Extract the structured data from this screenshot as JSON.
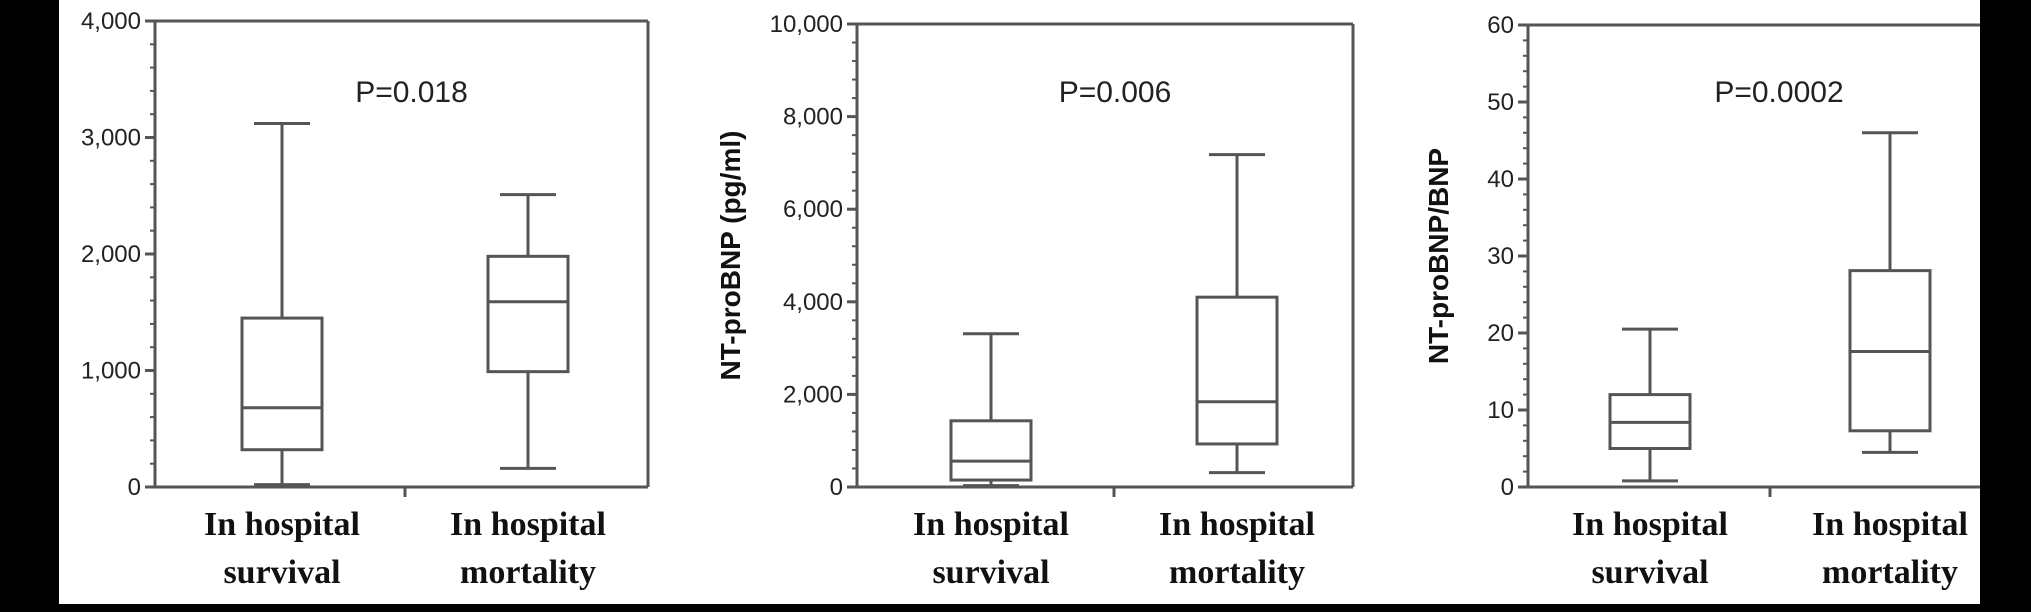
{
  "chart_data": [
    {
      "type": "box",
      "ylabel": "",
      "ylim": [
        0,
        4000
      ],
      "yticks": [
        "0",
        "1,000",
        "2,000",
        "3,000",
        "4,000"
      ],
      "annotation": "P=0.018",
      "categories": [
        [
          "In hospital",
          "survival"
        ],
        [
          "In hospital",
          "mortality"
        ]
      ],
      "boxes": [
        {
          "min": 20,
          "q1": 320,
          "median": 680,
          "q3": 1450,
          "max": 3120
        },
        {
          "min": 160,
          "q1": 990,
          "median": 1590,
          "q3": 1980,
          "max": 2510
        }
      ]
    },
    {
      "type": "box",
      "ylabel": "NT-proBNP (pg/ml)",
      "ylim": [
        0,
        10000
      ],
      "yticks": [
        "0",
        "2,000",
        "4,000",
        "6,000",
        "8,000",
        "10,000"
      ],
      "annotation": "P=0.006",
      "categories": [
        [
          "In hospital",
          "survival"
        ],
        [
          "In hospital",
          "mortality"
        ]
      ],
      "boxes": [
        {
          "min": 30,
          "q1": 150,
          "median": 560,
          "q3": 1430,
          "max": 3310
        },
        {
          "min": 310,
          "q1": 930,
          "median": 1840,
          "q3": 4100,
          "max": 7180
        }
      ]
    },
    {
      "type": "box",
      "ylabel": "NT-proBNP/BNP",
      "ylim": [
        0,
        60
      ],
      "yticks": [
        "0",
        "10",
        "20",
        "30",
        "40",
        "50",
        "60"
      ],
      "annotation": "P=0.0002",
      "categories": [
        [
          "In hospital",
          "survival"
        ],
        [
          "In hospital",
          "mortality"
        ]
      ],
      "boxes": [
        {
          "min": 0.8,
          "q1": 5,
          "median": 8.4,
          "q3": 12,
          "max": 20.5
        },
        {
          "min": 4.5,
          "q1": 7.3,
          "median": 17.6,
          "q3": 28.1,
          "max": 46
        }
      ]
    }
  ]
}
